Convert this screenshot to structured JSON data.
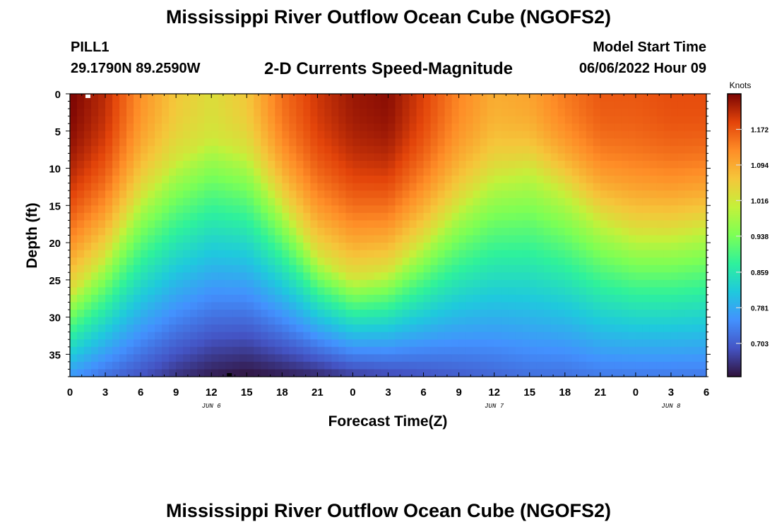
{
  "header": {
    "title": "Mississippi River Outflow Ocean Cube (NGOFS2)",
    "station": "PILL1",
    "coords": "29.1790N  89.2590W",
    "subtitle": "2-D Currents Speed-Magnitude",
    "model_start_label": "Model Start Time",
    "model_start_value": "06/06/2022 Hour 09"
  },
  "footer": {
    "title": "Mississippi River Outflow Ocean Cube (NGOFS2)"
  },
  "chart_data": {
    "type": "heatmap",
    "xlabel": "Forecast Time(Z)",
    "ylabel": "Depth (ft)",
    "x_hours_range": [
      0,
      54
    ],
    "x_tick_labels": [
      "0",
      "3",
      "6",
      "9",
      "12",
      "15",
      "18",
      "21",
      "0",
      "3",
      "6",
      "9",
      "12",
      "15",
      "18",
      "21",
      "0",
      "3",
      "6"
    ],
    "date_labels": [
      {
        "text": "JUN 6",
        "hour": 12
      },
      {
        "text": "JUN 7",
        "hour": 36
      },
      {
        "text": "JUN 8",
        "hour": 51
      }
    ],
    "y_range": [
      0,
      38
    ],
    "y_ticks": [
      0,
      5,
      10,
      15,
      20,
      25,
      30,
      35
    ],
    "colorbar": {
      "label": "Knots",
      "ticks": [
        "0.703",
        "0.781",
        "0.859",
        "0.938",
        "1.016",
        "1.094",
        "1.172"
      ],
      "min": 0.63,
      "max": 1.25
    },
    "surface_speed": [
      [
        0,
        1.25
      ],
      [
        3,
        1.21
      ],
      [
        6,
        1.12
      ],
      [
        9,
        1.06
      ],
      [
        12,
        1.03
      ],
      [
        15,
        1.06
      ],
      [
        18,
        1.15
      ],
      [
        21,
        1.2
      ],
      [
        24,
        1.23
      ],
      [
        27,
        1.24
      ],
      [
        30,
        1.19
      ],
      [
        33,
        1.13
      ],
      [
        36,
        1.09
      ],
      [
        39,
        1.1
      ],
      [
        42,
        1.14
      ],
      [
        45,
        1.17
      ],
      [
        48,
        1.17
      ],
      [
        51,
        1.18
      ],
      [
        54,
        1.18
      ]
    ],
    "bottom_speed": [
      [
        0,
        0.76
      ],
      [
        3,
        0.72
      ],
      [
        6,
        0.69
      ],
      [
        9,
        0.66
      ],
      [
        12,
        0.64
      ],
      [
        15,
        0.63
      ],
      [
        18,
        0.64
      ],
      [
        21,
        0.65
      ],
      [
        24,
        0.67
      ],
      [
        27,
        0.68
      ],
      [
        30,
        0.69
      ],
      [
        33,
        0.7
      ],
      [
        36,
        0.71
      ],
      [
        39,
        0.72
      ],
      [
        42,
        0.72
      ],
      [
        45,
        0.73
      ],
      [
        48,
        0.73
      ],
      [
        51,
        0.73
      ],
      [
        54,
        0.73
      ]
    ],
    "contour_1016_depth": [
      [
        0,
        27
      ],
      [
        3,
        22
      ],
      [
        6,
        14
      ],
      [
        9,
        9
      ],
      [
        12,
        6
      ],
      [
        15,
        8
      ],
      [
        18,
        15
      ],
      [
        21,
        22
      ],
      [
        24,
        25
      ],
      [
        27,
        24
      ],
      [
        30,
        20
      ],
      [
        33,
        15
      ],
      [
        36,
        11
      ],
      [
        39,
        10
      ],
      [
        42,
        13
      ],
      [
        45,
        17
      ],
      [
        48,
        19
      ],
      [
        51,
        19
      ],
      [
        54,
        18
      ]
    ]
  }
}
